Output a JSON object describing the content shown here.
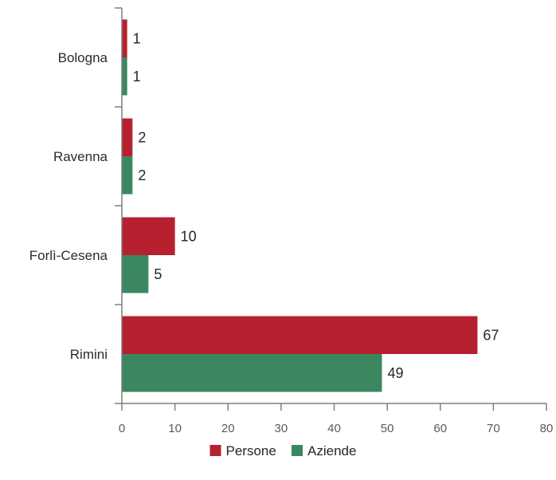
{
  "chart_data": {
    "type": "bar",
    "orientation": "horizontal",
    "categories": [
      "Bologna",
      "Ravenna",
      "Forlì-Cesena",
      "Rimini"
    ],
    "series": [
      {
        "name": "Persone",
        "color": "#b7202e",
        "values": [
          1,
          2,
          10,
          67
        ]
      },
      {
        "name": "Aziende",
        "color": "#3b8760",
        "values": [
          1,
          2,
          5,
          49
        ]
      }
    ],
    "xlim": [
      0,
      80
    ],
    "x_ticks": [
      0,
      10,
      20,
      30,
      40,
      50,
      60,
      70,
      80
    ],
    "grid": false,
    "data_labels": true,
    "legend_position": "bottom"
  }
}
